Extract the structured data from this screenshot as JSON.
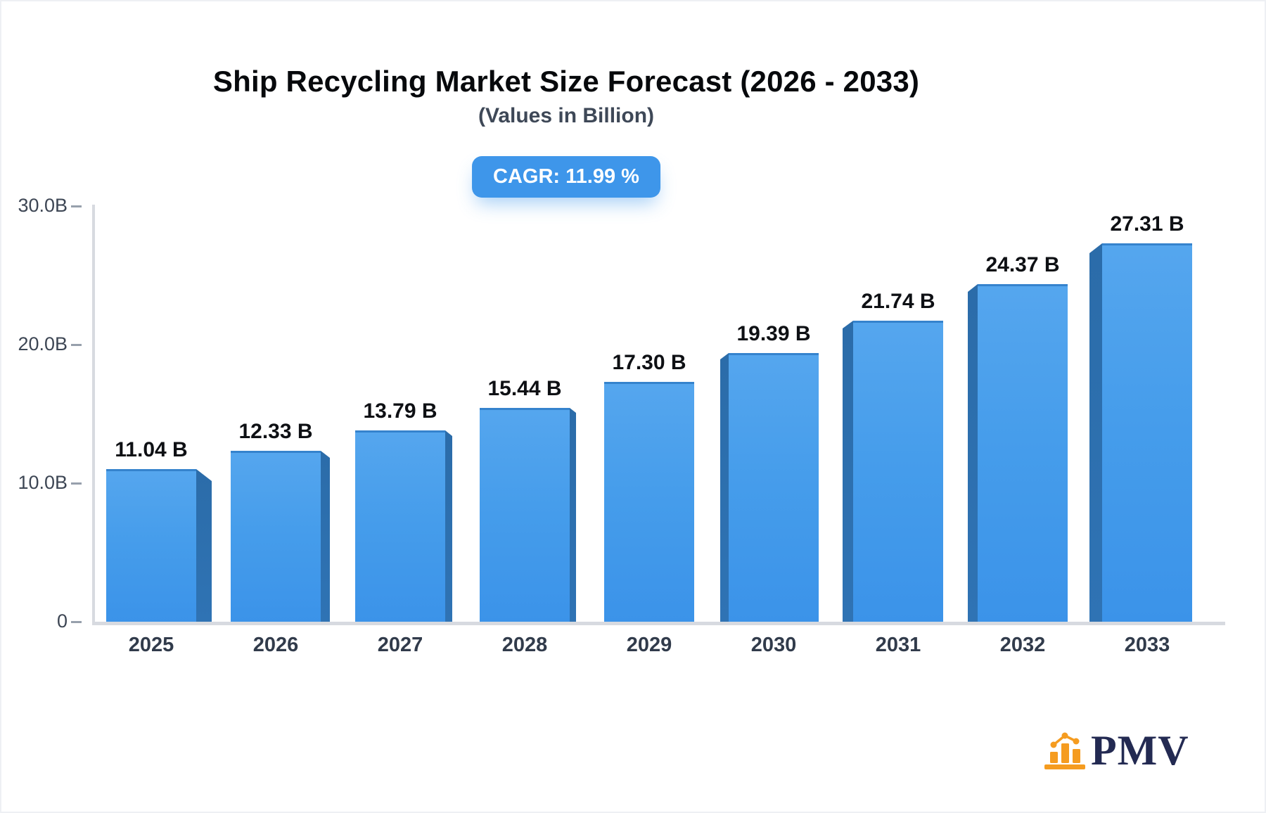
{
  "header": {
    "title": "Ship Recycling Market Size Forecast (2026 - 2033)",
    "subtitle": "(Values in Billion)",
    "cagr_label": "CAGR: 11.99 %"
  },
  "chart_data": {
    "type": "bar",
    "title": "Ship Recycling Market Size Forecast (2026 - 2033)",
    "subtitle": "(Values in Billion)",
    "cagr_percent": 11.99,
    "categories": [
      "2025",
      "2026",
      "2027",
      "2028",
      "2029",
      "2030",
      "2031",
      "2032",
      "2033"
    ],
    "values": [
      11.04,
      12.33,
      13.79,
      15.44,
      17.3,
      19.39,
      21.74,
      24.37,
      27.31
    ],
    "value_labels": [
      "11.04 B",
      "12.33 B",
      "13.79 B",
      "15.44 B",
      "17.30 B",
      "19.39 B",
      "21.74 B",
      "24.37 B",
      "27.31 B"
    ],
    "yticks": [
      {
        "value": 30,
        "label": "30.0B"
      },
      {
        "value": 20,
        "label": "20.0B"
      },
      {
        "value": 10,
        "label": "10.0B"
      },
      {
        "value": 0,
        "label": "0"
      }
    ],
    "ylim": [
      0,
      30
    ],
    "grid": false,
    "legend": null,
    "style": {
      "bar_face_gradient_top": "#55a6ee",
      "bar_face_gradient_bottom": "#3b93e9",
      "bar_top_edge": "#3583cd",
      "bar_side_3d": "#2e71b0",
      "axis_color": "#d7dae0",
      "tick_color": "#97a0ac",
      "badge_color": "#3e96ea",
      "label_color": "#0e1014"
    }
  },
  "branding": {
    "logo_text": "PMV",
    "logo_icon": "bar-chart-icon",
    "logo_text_color": "#232a52",
    "logo_icon_color": "#f59c20"
  }
}
